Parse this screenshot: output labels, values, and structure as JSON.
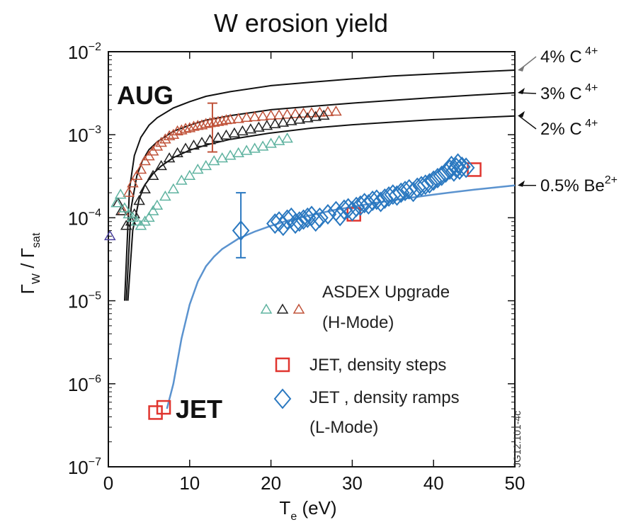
{
  "chart_data": {
    "type": "scatter",
    "title": "W erosion yield",
    "xlabel": {
      "base": "T",
      "sub": "e",
      "rest": " (eV)"
    },
    "ylabel": {
      "g1": "Γ",
      "s1": "W",
      "sep": " / ",
      "g2": "Γ",
      "s2": "sat"
    },
    "x_scale": "linear",
    "y_scale": "log",
    "xlim": [
      0,
      50
    ],
    "ylim": [
      1e-07,
      0.01
    ],
    "x_ticks": [
      "0",
      "10",
      "20",
      "30",
      "40",
      "50"
    ],
    "y_ticks": [
      {
        "base": "10",
        "exp": "−2"
      },
      {
        "base": "10",
        "exp": "−3"
      },
      {
        "base": "10",
        "exp": "−4"
      },
      {
        "base": "10",
        "exp": "−5"
      },
      {
        "base": "10",
        "exp": "−6"
      },
      {
        "base": "10",
        "exp": "−7"
      }
    ],
    "annotations": {
      "aug": "AUG",
      "jet": "JET",
      "code": "JG12.101-4c"
    },
    "curves": [
      {
        "label": "4% C",
        "sup": "4+",
        "color": "#111111",
        "x": [
          2,
          2.6,
          3.2,
          4,
          5,
          6,
          8,
          10,
          12,
          15,
          20,
          25,
          30,
          35,
          40,
          45,
          50
        ],
        "y": [
          1e-05,
          0.00022,
          0.00056,
          0.00093,
          0.0013,
          0.0016,
          0.0021,
          0.0025,
          0.0029,
          0.0033,
          0.0039,
          0.0043,
          0.0047,
          0.0051,
          0.0054,
          0.0057,
          0.006
        ]
      },
      {
        "label": "3% C",
        "sup": "4+",
        "color": "#111111",
        "x": [
          2.2,
          2.8,
          3.5,
          4.2,
          5,
          6,
          8,
          10,
          12,
          15,
          20,
          25,
          30,
          35,
          40,
          45,
          50
        ],
        "y": [
          1e-05,
          0.00013,
          0.00032,
          0.00049,
          0.00066,
          0.00082,
          0.0011,
          0.0013,
          0.0015,
          0.0017,
          0.002,
          0.0022,
          0.0024,
          0.0026,
          0.0028,
          0.003,
          0.0032
        ]
      },
      {
        "label": "2% C",
        "sup": "4+",
        "color": "#111111",
        "x": [
          2.4,
          3,
          3.8,
          4.5,
          5.5,
          6.5,
          8,
          10,
          12,
          15,
          20,
          25,
          30,
          35,
          40,
          45,
          50
        ],
        "y": [
          1e-05,
          7e-05,
          0.00017,
          0.00025,
          0.00034,
          0.00042,
          0.00053,
          0.00065,
          0.00075,
          0.00088,
          0.00105,
          0.0012,
          0.00132,
          0.00142,
          0.00152,
          0.0016,
          0.00168
        ]
      },
      {
        "label": "0.5% Be",
        "sup": "2+",
        "color": "#5b93cf",
        "x": [
          7.2,
          8,
          9,
          10,
          11,
          12,
          13,
          14,
          16,
          18,
          20,
          22,
          25,
          28,
          30,
          33,
          36,
          40,
          45,
          50
        ],
        "y": [
          5e-07,
          1e-06,
          3.5e-06,
          9e-06,
          1.7e-05,
          2.6e-05,
          3.4e-05,
          4.2e-05,
          5.6e-05,
          6.8e-05,
          8e-05,
          9.2e-05,
          0.000108,
          0.000125,
          0.000135,
          0.000152,
          0.000168,
          0.00019,
          0.000218,
          0.000245
        ]
      }
    ],
    "series": [
      {
        "name": "ASDEX Upgrade (H-Mode) red",
        "marker": "triangle",
        "color": "#c0533a",
        "x": [
          1.8,
          2.5,
          3,
          3.5,
          4,
          4.5,
          5,
          5.5,
          6,
          6.5,
          7,
          7.5,
          8,
          8.5,
          9,
          9.5,
          10,
          10.5,
          11,
          11.5,
          12,
          12.5,
          13,
          13.5,
          14,
          14.5,
          15,
          16,
          17,
          18,
          19,
          20,
          21,
          22,
          23,
          24,
          25,
          26,
          27,
          28
        ],
        "y": [
          0.00012,
          0.0002,
          0.00026,
          0.00032,
          0.00038,
          0.00048,
          0.00055,
          0.00063,
          0.00072,
          0.0008,
          0.00088,
          0.00096,
          0.001,
          0.0011,
          0.00113,
          0.00118,
          0.0012,
          0.00125,
          0.00128,
          0.0013,
          0.00135,
          0.00138,
          0.0014,
          0.00143,
          0.00146,
          0.0015,
          0.00152,
          0.00155,
          0.0016,
          0.00163,
          0.00166,
          0.0017,
          0.00172,
          0.00175,
          0.00178,
          0.0018,
          0.00182,
          0.00185,
          0.00188,
          0.0019
        ]
      },
      {
        "name": "ASDEX Upgrade (H-Mode) black",
        "marker": "triangle",
        "color": "#222222",
        "x": [
          1.2,
          1.6,
          2.2,
          2.8,
          3.2,
          3.8,
          4.5,
          5.5,
          6.5,
          7.5,
          8.5,
          9.5,
          10.5,
          11.5,
          12.5,
          13.5,
          14.5,
          15.5,
          16.5,
          17.5,
          18.5,
          19.5,
          20.5,
          21.5,
          22.5,
          23.5,
          24.5,
          25.5,
          26.5
        ],
        "y": [
          0.00015,
          0.00012,
          8e-05,
          9e-05,
          0.00011,
          0.00016,
          0.00022,
          0.00032,
          0.00042,
          0.00052,
          0.0006,
          0.00068,
          0.00074,
          0.0008,
          0.00086,
          0.00092,
          0.00098,
          0.00104,
          0.0011,
          0.00116,
          0.00122,
          0.00128,
          0.00134,
          0.0014,
          0.00146,
          0.00152,
          0.00158,
          0.00164,
          0.0017
        ]
      },
      {
        "name": "ASDEX Upgrade (H-Mode) teal",
        "marker": "triangle",
        "color": "#5fb3a0",
        "x": [
          1,
          1.5,
          2,
          2.5,
          3,
          3.5,
          4,
          4.5,
          5,
          5.5,
          6,
          7,
          8,
          9,
          10,
          11,
          12,
          13,
          14,
          15,
          16,
          17,
          18,
          19,
          20,
          21,
          22
        ],
        "y": [
          0.00015,
          0.00019,
          0.00013,
          0.00011,
          0.0001,
          9e-05,
          8e-05,
          9e-05,
          0.0001,
          0.00012,
          0.00014,
          0.00018,
          0.00022,
          0.00028,
          0.00032,
          0.00038,
          0.00042,
          0.00048,
          0.00052,
          0.00056,
          0.0006,
          0.00064,
          0.00068,
          0.00072,
          0.00078,
          0.00084,
          0.0009
        ]
      },
      {
        "name": "ASDEX Upgrade (H-Mode) purple",
        "marker": "triangle",
        "color": "#4a3f9e",
        "x": [
          0.2
        ],
        "y": [
          6e-05
        ]
      },
      {
        "name": "JET, density steps",
        "marker": "square",
        "color": "#e0352f",
        "x": [
          5.8,
          6.8,
          30.2,
          45
        ],
        "y": [
          4.5e-07,
          5.2e-07,
          0.00011,
          0.00038
        ]
      },
      {
        "name": "JET, density ramps",
        "marker": "diamond",
        "color": "#2a78c0",
        "x": [
          16.3,
          20.5,
          21,
          21.5,
          22,
          22.5,
          23,
          23.5,
          24,
          24.5,
          25,
          25.5,
          26,
          27,
          28,
          28.5,
          29,
          29.5,
          30,
          30.5,
          31,
          31.5,
          32,
          32.5,
          33,
          33.5,
          34,
          34.5,
          35,
          35.5,
          36,
          36.5,
          37,
          37.5,
          38,
          38.5,
          39,
          39.5,
          40,
          40.5,
          41,
          41.5,
          42,
          42.2,
          42.5,
          42.8,
          43,
          43.2,
          43.5,
          44
        ],
        "y": [
          7e-05,
          8.5e-05,
          9e-05,
          8e-05,
          9.5e-05,
          0.0001,
          8.5e-05,
          9e-05,
          9.5e-05,
          0.0001,
          0.000105,
          9e-05,
          0.0001,
          0.00011,
          0.00012,
          0.000105,
          0.000125,
          0.00013,
          0.00012,
          0.000135,
          0.00014,
          0.00015,
          0.000145,
          0.00016,
          0.000165,
          0.000155,
          0.00017,
          0.00018,
          0.00019,
          0.000185,
          0.0002,
          0.00021,
          0.00022,
          0.000205,
          0.00023,
          0.00024,
          0.00025,
          0.00026,
          0.00028,
          0.0003,
          0.00032,
          0.00035,
          0.00038,
          0.00042,
          0.00036,
          0.0004,
          0.00045,
          0.00038,
          0.00041,
          0.0004
        ]
      }
    ],
    "error_bars": [
      {
        "x": 12.8,
        "y": 0.0011,
        "ylo": 0.00062,
        "yhi": 0.0024,
        "color": "#c0533a"
      },
      {
        "x": 16.3,
        "y": 7e-05,
        "ylo": 3.3e-05,
        "yhi": 0.0002,
        "color": "#2a78c0"
      }
    ],
    "legend": {
      "asdex_1": "ASDEX Upgrade",
      "asdex_2": "(H-Mode)",
      "jet_steps": "JET, density steps",
      "jet_ramps": "JET , density ramps",
      "lmode": "(L-Mode)"
    },
    "legend_placement": "lower-right inside",
    "grid": false
  }
}
